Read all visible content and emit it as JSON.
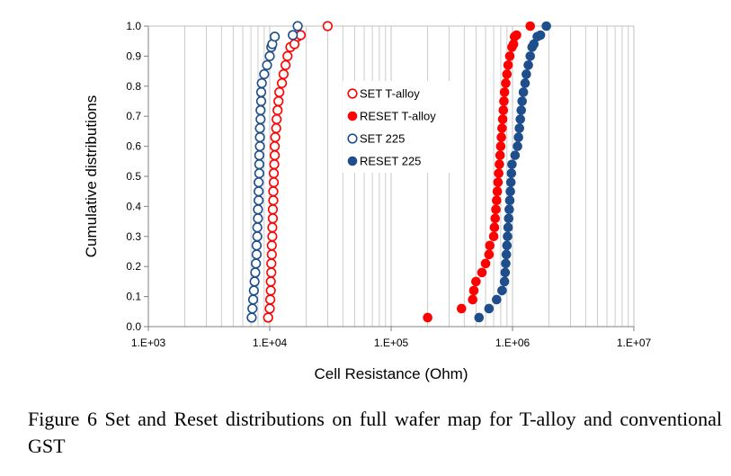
{
  "caption": "Figure 6  Set and Reset distributions on full wafer map for T-alloy and conventional GST",
  "colors": {
    "red": "#ff0000",
    "blue": "#1f4e8c",
    "grid": "#bfbfbf",
    "axis": "#808080"
  },
  "chart_data": {
    "type": "scatter",
    "title": "",
    "xlabel": "Cell Resistance (Ohm)",
    "ylabel": "Cumulative distributions",
    "xscale": "log",
    "xlim": [
      1000,
      10000000
    ],
    "ylim": [
      0,
      1
    ],
    "xtick_labels": [
      "1.E+03",
      "1.E+04",
      "1.E+05",
      "1.E+06",
      "1.E+07"
    ],
    "ytick_labels": [
      "0.0",
      "0.1",
      "0.2",
      "0.3",
      "0.4",
      "0.5",
      "0.6",
      "0.7",
      "0.8",
      "0.9",
      "1.0"
    ],
    "grid": true,
    "legend_position": "center",
    "series": [
      {
        "name": "SET T-alloy",
        "marker": "open-circle",
        "color": "#ff0000",
        "x": [
          9700,
          10000,
          10100,
          10200,
          10200,
          10300,
          10300,
          10400,
          10400,
          10500,
          10500,
          10600,
          10600,
          10700,
          10700,
          10800,
          10800,
          10900,
          11000,
          11000,
          11100,
          11300,
          11400,
          11600,
          11800,
          12000,
          12600,
          13000,
          13500,
          14000,
          14800,
          16000,
          17000,
          18000,
          30000
        ],
        "y": [
          0.03,
          0.06,
          0.09,
          0.12,
          0.15,
          0.18,
          0.21,
          0.24,
          0.27,
          0.3,
          0.33,
          0.36,
          0.39,
          0.42,
          0.45,
          0.48,
          0.51,
          0.54,
          0.57,
          0.6,
          0.63,
          0.66,
          0.69,
          0.72,
          0.75,
          0.78,
          0.81,
          0.84,
          0.87,
          0.9,
          0.93,
          0.94,
          0.965,
          0.97,
          1.0
        ]
      },
      {
        "name": "RESET T-alloy",
        "marker": "filled-circle",
        "color": "#ff0000",
        "x": [
          200000,
          380000,
          470000,
          480000,
          500000,
          560000,
          600000,
          640000,
          650000,
          700000,
          710000,
          720000,
          730000,
          740000,
          750000,
          760000,
          770000,
          780000,
          790000,
          800000,
          810000,
          820000,
          830000,
          840000,
          850000,
          860000,
          880000,
          900000,
          920000,
          950000,
          990000,
          1020000,
          1040000,
          1080000,
          1400000
        ],
        "y": [
          0.03,
          0.06,
          0.09,
          0.12,
          0.15,
          0.18,
          0.21,
          0.24,
          0.27,
          0.3,
          0.33,
          0.36,
          0.39,
          0.42,
          0.45,
          0.48,
          0.51,
          0.54,
          0.57,
          0.6,
          0.63,
          0.66,
          0.69,
          0.72,
          0.75,
          0.78,
          0.81,
          0.84,
          0.87,
          0.9,
          0.93,
          0.94,
          0.965,
          0.97,
          1.0
        ]
      },
      {
        "name": "SET 225",
        "marker": "open-circle",
        "color": "#1f4e8c",
        "x": [
          7100,
          7200,
          7300,
          7400,
          7500,
          7600,
          7700,
          7800,
          7800,
          7900,
          7900,
          8000,
          8000,
          8100,
          8100,
          8100,
          8200,
          8200,
          8200,
          8300,
          8300,
          8300,
          8400,
          8400,
          8500,
          8500,
          8600,
          9000,
          9500,
          10000,
          10300,
          10500,
          11000,
          15500,
          17000
        ],
        "y": [
          0.03,
          0.06,
          0.09,
          0.12,
          0.15,
          0.18,
          0.21,
          0.24,
          0.27,
          0.3,
          0.33,
          0.36,
          0.39,
          0.42,
          0.45,
          0.48,
          0.51,
          0.54,
          0.57,
          0.6,
          0.63,
          0.66,
          0.69,
          0.72,
          0.75,
          0.78,
          0.81,
          0.84,
          0.87,
          0.9,
          0.93,
          0.94,
          0.965,
          0.97,
          1.0
        ]
      },
      {
        "name": "RESET 225",
        "marker": "filled-circle",
        "color": "#1f4e8c",
        "x": [
          530000,
          640000,
          740000,
          820000,
          860000,
          870000,
          880000,
          890000,
          900000,
          910000,
          920000,
          930000,
          940000,
          950000,
          960000,
          970000,
          980000,
          990000,
          1050000,
          1100000,
          1120000,
          1140000,
          1160000,
          1180000,
          1200000,
          1230000,
          1270000,
          1300000,
          1350000,
          1400000,
          1450000,
          1500000,
          1600000,
          1700000,
          1900000
        ],
        "y": [
          0.03,
          0.06,
          0.09,
          0.12,
          0.15,
          0.18,
          0.21,
          0.24,
          0.27,
          0.3,
          0.33,
          0.36,
          0.39,
          0.42,
          0.45,
          0.48,
          0.51,
          0.54,
          0.57,
          0.6,
          0.63,
          0.66,
          0.69,
          0.72,
          0.75,
          0.78,
          0.81,
          0.84,
          0.87,
          0.9,
          0.93,
          0.94,
          0.965,
          0.97,
          1.0
        ]
      }
    ]
  }
}
